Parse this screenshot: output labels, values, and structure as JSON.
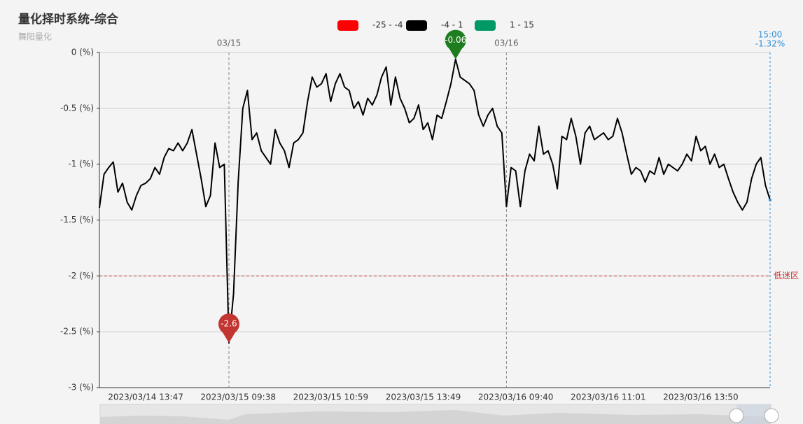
{
  "chart_data": {
    "type": "line",
    "title": "量化择时系统-综合",
    "subtitle": "舞阳量化",
    "legend": [
      {
        "label": "-25 - -4",
        "color": "#ff0000"
      },
      {
        "label": "-4 - 1",
        "color": "#000000"
      },
      {
        "label": "1 - 15",
        "color": "#009966"
      }
    ],
    "color": "#000000",
    "categories": [
      null,
      null,
      null,
      null,
      null,
      null,
      null,
      null,
      null,
      null,
      "2023/03/14 13:47",
      null,
      null,
      null,
      null,
      null,
      null,
      null,
      null,
      null,
      null,
      null,
      null,
      null,
      null,
      null,
      null,
      null,
      null,
      null,
      "2023/03/15 09:38",
      null,
      null,
      null,
      null,
      null,
      null,
      null,
      null,
      null,
      null,
      null,
      null,
      null,
      null,
      null,
      null,
      null,
      null,
      null,
      "2023/03/15 10:59",
      null,
      null,
      null,
      null,
      null,
      null,
      null,
      null,
      null,
      null,
      null,
      null,
      null,
      null,
      null,
      null,
      null,
      null,
      null,
      "2023/03/15 13:49",
      null,
      null,
      null,
      null,
      null,
      null,
      null,
      null,
      null,
      null,
      null,
      null,
      null,
      null,
      null,
      null,
      null,
      null,
      null,
      "2023/03/16 09:40",
      null,
      null,
      null,
      null,
      null,
      null,
      null,
      null,
      null,
      null,
      null,
      null,
      null,
      null,
      null,
      null,
      null,
      null,
      null,
      "2023/03/16 11:01",
      null,
      null,
      null,
      null,
      null,
      null,
      null,
      null,
      null,
      null,
      null,
      null,
      null,
      null,
      null,
      null,
      null,
      null,
      null,
      "2023/03/16 13:50",
      null,
      null,
      null,
      null,
      null,
      null,
      null,
      null,
      null,
      null,
      null,
      null,
      null,
      null,
      null
    ],
    "values": [
      -1.39,
      -1.09,
      -1.03,
      -0.98,
      -1.25,
      -1.17,
      -1.34,
      -1.41,
      -1.28,
      -1.19,
      -1.17,
      -1.13,
      -1.03,
      -1.09,
      -0.94,
      -0.86,
      -0.88,
      -0.81,
      -0.88,
      -0.81,
      -0.69,
      -0.91,
      -1.13,
      -1.38,
      -1.28,
      -0.81,
      -1.03,
      -1.0,
      -2.6,
      -2.16,
      -1.16,
      -0.5,
      -0.34,
      -0.78,
      -0.72,
      -0.88,
      -0.94,
      -1.0,
      -0.69,
      -0.81,
      -0.88,
      -1.03,
      -0.81,
      -0.78,
      -0.72,
      -0.44,
      -0.22,
      -0.31,
      -0.28,
      -0.19,
      -0.44,
      -0.28,
      -0.19,
      -0.31,
      -0.34,
      -0.5,
      -0.44,
      -0.56,
      -0.41,
      -0.47,
      -0.38,
      -0.22,
      -0.13,
      -0.47,
      -0.22,
      -0.41,
      -0.5,
      -0.63,
      -0.59,
      -0.47,
      -0.69,
      -0.63,
      -0.78,
      -0.56,
      -0.59,
      -0.44,
      -0.28,
      -0.06,
      -0.22,
      -0.25,
      -0.28,
      -0.34,
      -0.56,
      -0.66,
      -0.56,
      -0.5,
      -0.66,
      -0.72,
      -1.38,
      -1.03,
      -1.06,
      -1.38,
      -1.06,
      -0.91,
      -0.97,
      -0.66,
      -0.91,
      -0.88,
      -1.0,
      -1.22,
      -0.75,
      -0.78,
      -0.59,
      -0.75,
      -1.0,
      -0.72,
      -0.66,
      -0.78,
      -0.75,
      -0.72,
      -0.78,
      -0.75,
      -0.59,
      -0.72,
      -0.91,
      -1.09,
      -1.03,
      -1.06,
      -1.16,
      -1.06,
      -1.09,
      -0.94,
      -1.09,
      -1.0,
      -1.03,
      -1.06,
      -1.0,
      -0.91,
      -0.97,
      -0.75,
      -0.88,
      -0.84,
      -1.0,
      -0.91,
      -1.03,
      -1.0,
      -1.13,
      -1.25,
      -1.34,
      -1.41,
      -1.34,
      -1.13,
      -1.0,
      -0.94,
      -1.19,
      -1.32
    ],
    "ylim": [
      -3,
      0
    ],
    "yticks": [
      {
        "value": 0,
        "label": "0 (%)"
      },
      {
        "value": -0.5,
        "label": "-0.5 (%)"
      },
      {
        "value": -1,
        "label": "-1 (%)"
      },
      {
        "value": -1.5,
        "label": "-1.5 (%)"
      },
      {
        "value": -2,
        "label": "-2 (%)"
      },
      {
        "value": -2.5,
        "label": "-2.5 (%)"
      },
      {
        "value": -3,
        "label": "-3 (%)"
      }
    ],
    "grid": true,
    "day_markers": [
      {
        "label": "03/15",
        "index": 28
      },
      {
        "label": "03/16",
        "index": 88
      }
    ],
    "threshold": {
      "value": -2,
      "label": "低迷区",
      "color": "#c23531"
    },
    "mark_points": [
      {
        "value": -2.6,
        "color": "#c23531"
      },
      {
        "value": -0.06,
        "color": "#1e7d1e"
      }
    ],
    "end_label": {
      "time": "15:00",
      "value": -1.32,
      "value_label": "-1.32%",
      "color": "#2f8fd8"
    }
  }
}
